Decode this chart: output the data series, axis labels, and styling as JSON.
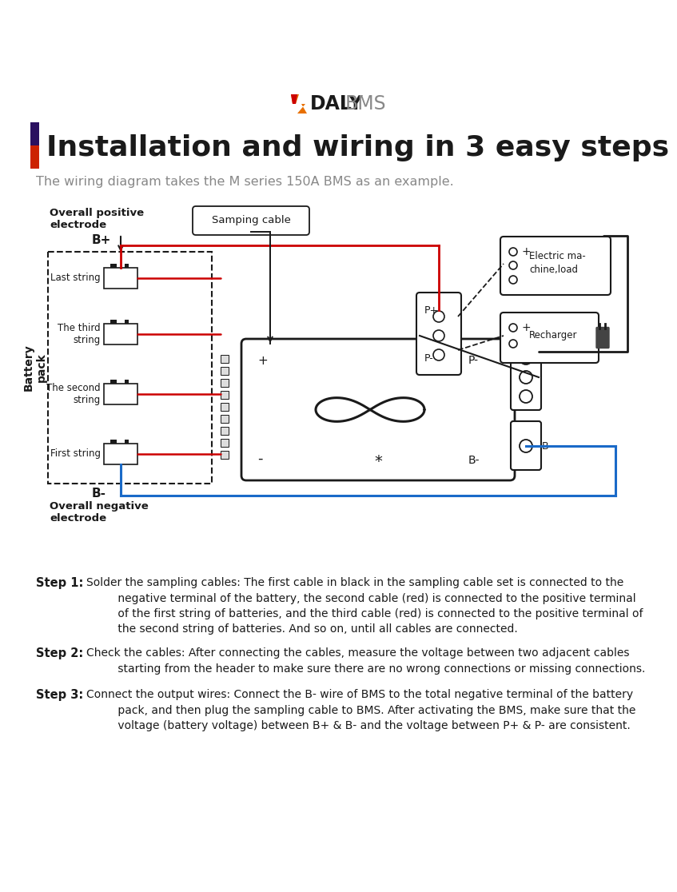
{
  "bg_color": "#ffffff",
  "title_text": "Installation and wiring in 3 easy steps",
  "subtitle_text": "The wiring diagram takes the M series 150A BMS as an example.",
  "red": "#cc0000",
  "blue": "#1a6ac8",
  "black": "#1a1a1a",
  "gray": "#888888",
  "dark_gray": "#555555",
  "orange": "#e87000",
  "yellow": "#f5c000",
  "purple_dark": "#2a1060",
  "red_bar": "#cc2200",
  "step1_label": "Step 1:",
  "step1_body": "Solder the sampling cables: The first cable in black in the sampling cable set is connected to the\n         negative terminal of the battery, the second cable (red) is connected to the positive terminal\n         of the first string of batteries, and the third cable (red) is connected to the positive terminal of\n         the second string of batteries. And so on, until all cables are connected.",
  "step2_label": "Step 2:",
  "step2_body": "Check the cables: After connecting the cables, measure the voltage between two adjacent cables\n         starting from the header to make sure there are no wrong connections or missing connections.",
  "step3_label": "Step 3:",
  "step3_body": "Connect the output wires: Connect the B- wire of BMS to the total negative terminal of the battery\n         pack, and then plug the sampling cable to BMS. After activating the BMS, make sure that the\n         voltage (battery voltage) between B+ & B- and the voltage between P+ & P- are consistent."
}
